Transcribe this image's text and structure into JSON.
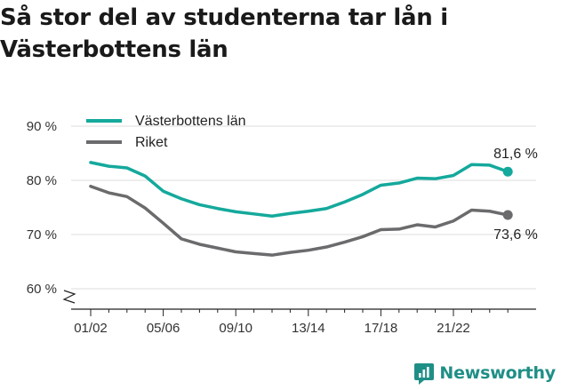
{
  "chart_data": {
    "type": "line",
    "title": "Så stor del av studenterna tar lån i Västerbottens län",
    "x": [
      "01/02",
      "02/03",
      "03/04",
      "04/05",
      "05/06",
      "06/07",
      "07/08",
      "08/09",
      "09/10",
      "10/11",
      "11/12",
      "12/13",
      "13/14",
      "14/15",
      "15/16",
      "16/17",
      "17/18",
      "18/19",
      "19/20",
      "20/21",
      "21/22",
      "22/23",
      "23/24",
      "24/25"
    ],
    "x_tick_labels": [
      "01/02",
      "05/06",
      "09/10",
      "13/14",
      "17/18",
      "21/22"
    ],
    "y_ticks": [
      60,
      70,
      80,
      90
    ],
    "y_tick_suffix": " %",
    "ylim": [
      58,
      92
    ],
    "grid": true,
    "legend_position": "top-left",
    "series": [
      {
        "name": "Västerbottens län",
        "color": "#14a99c",
        "values": [
          83.3,
          82.6,
          82.3,
          80.8,
          78.0,
          76.6,
          75.5,
          74.8,
          74.2,
          73.8,
          73.4,
          73.9,
          74.3,
          74.8,
          76.0,
          77.4,
          79.1,
          79.5,
          80.4,
          80.3,
          80.9,
          82.9,
          82.8,
          81.6
        ],
        "end_label": "81,6 %"
      },
      {
        "name": "Riket",
        "color": "#6b6b6e",
        "values": [
          78.9,
          77.7,
          77.0,
          74.9,
          72.1,
          69.2,
          68.2,
          67.5,
          66.8,
          66.5,
          66.2,
          66.7,
          67.1,
          67.7,
          68.6,
          69.6,
          70.9,
          71.0,
          71.8,
          71.4,
          72.5,
          74.5,
          74.3,
          73.6
        ],
        "end_label": "73,6 %"
      }
    ]
  },
  "brand": {
    "name": "Newsworthy",
    "color": "#1f8f86"
  }
}
